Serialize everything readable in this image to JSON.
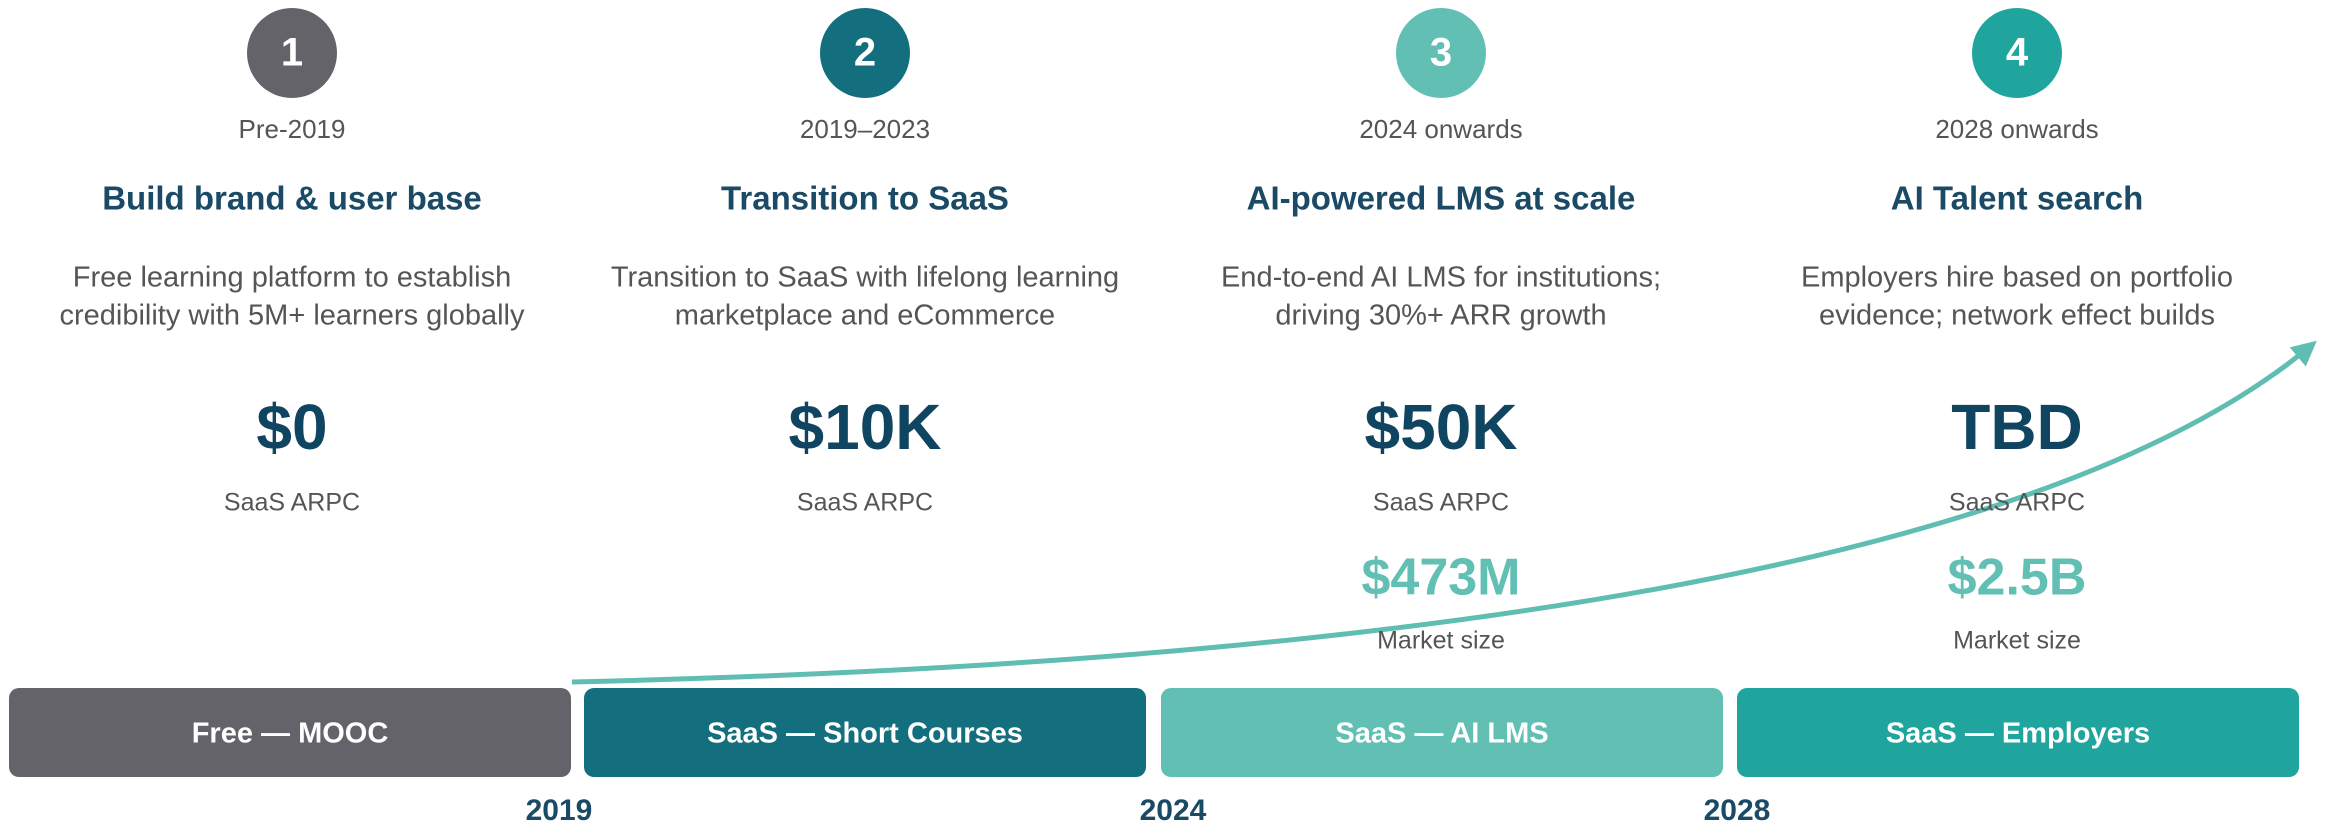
{
  "stages": [
    {
      "number": "1",
      "period": "Pre-2019",
      "title": "Build brand & user base",
      "description": [
        "Free learning platform to establish",
        "credibility with 5M+ learners globally"
      ],
      "arpc": "$0",
      "arpc_label": "SaaS ARPC",
      "bar": "Free — MOOC"
    },
    {
      "number": "2",
      "period": "2019–2023",
      "title": "Transition to SaaS",
      "description": [
        "Transition to SaaS with lifelong learning",
        "marketplace and eCommerce"
      ],
      "arpc": "$10K",
      "arpc_label": "SaaS ARPC",
      "bar": "SaaS — Short Courses"
    },
    {
      "number": "3",
      "period": "2024 onwards",
      "title": "AI-powered LMS at scale",
      "description": [
        "End-to-end AI LMS for institutions;",
        "driving 30%+ ARR growth"
      ],
      "arpc": "$50K",
      "arpc_label": "SaaS ARPC",
      "market_size": "$473M",
      "market_label": "Market size",
      "bar": "SaaS — AI LMS"
    },
    {
      "number": "4",
      "period": "2028 onwards",
      "title": "AI Talent search",
      "description": [
        "Employers hire based on portfolio",
        "evidence; network effect builds"
      ],
      "arpc": "TBD",
      "arpc_label": "SaaS ARPC",
      "market_size": "$2.5B",
      "market_label": "Market size",
      "bar": "SaaS — Employers"
    }
  ],
  "years": [
    "2019",
    "2024",
    "2028"
  ]
}
